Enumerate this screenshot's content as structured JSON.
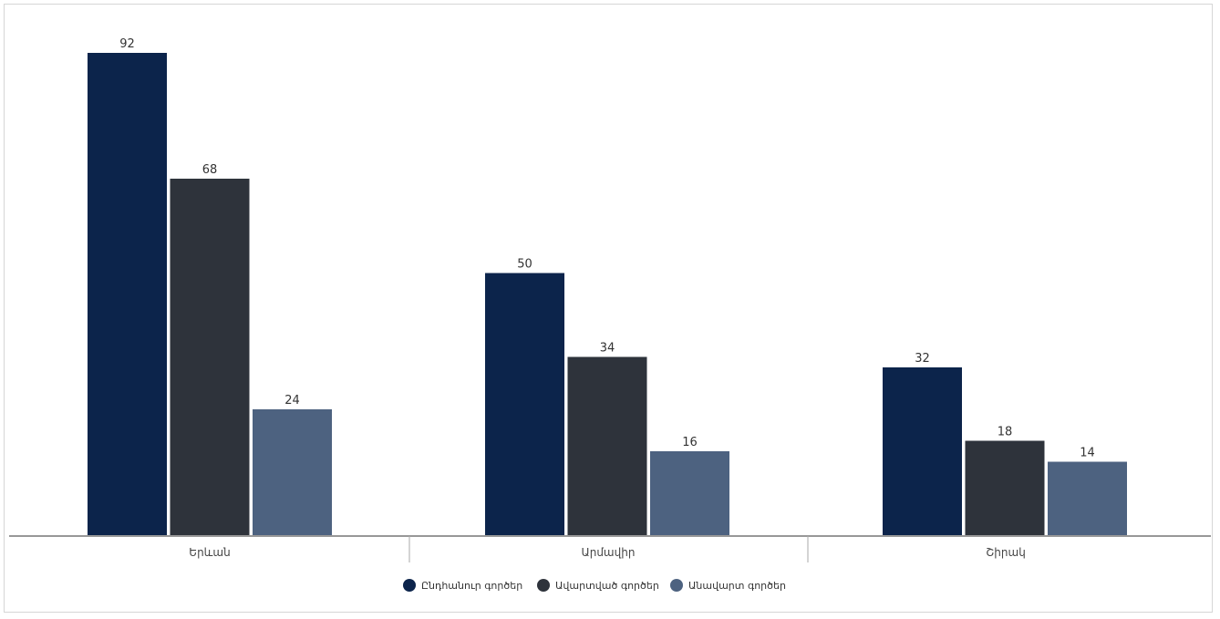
{
  "chart_data": {
    "type": "bar",
    "categories": [
      "Երևան",
      "Արմավիր",
      "Շիրակ"
    ],
    "series": [
      {
        "name": "Ընդհանուր գործեր",
        "values": [
          92,
          50,
          32
        ],
        "color": "#0c244b"
      },
      {
        "name": "Ավարտված գործեր",
        "values": [
          68,
          34,
          18
        ],
        "color": "#2e333b"
      },
      {
        "name": "Անավարտ գործեր",
        "values": [
          24,
          16,
          14
        ],
        "color": "#4d6280"
      }
    ],
    "ylim": [
      0,
      92
    ],
    "grid": false,
    "legend": "bottom-center",
    "data_labels": true
  }
}
